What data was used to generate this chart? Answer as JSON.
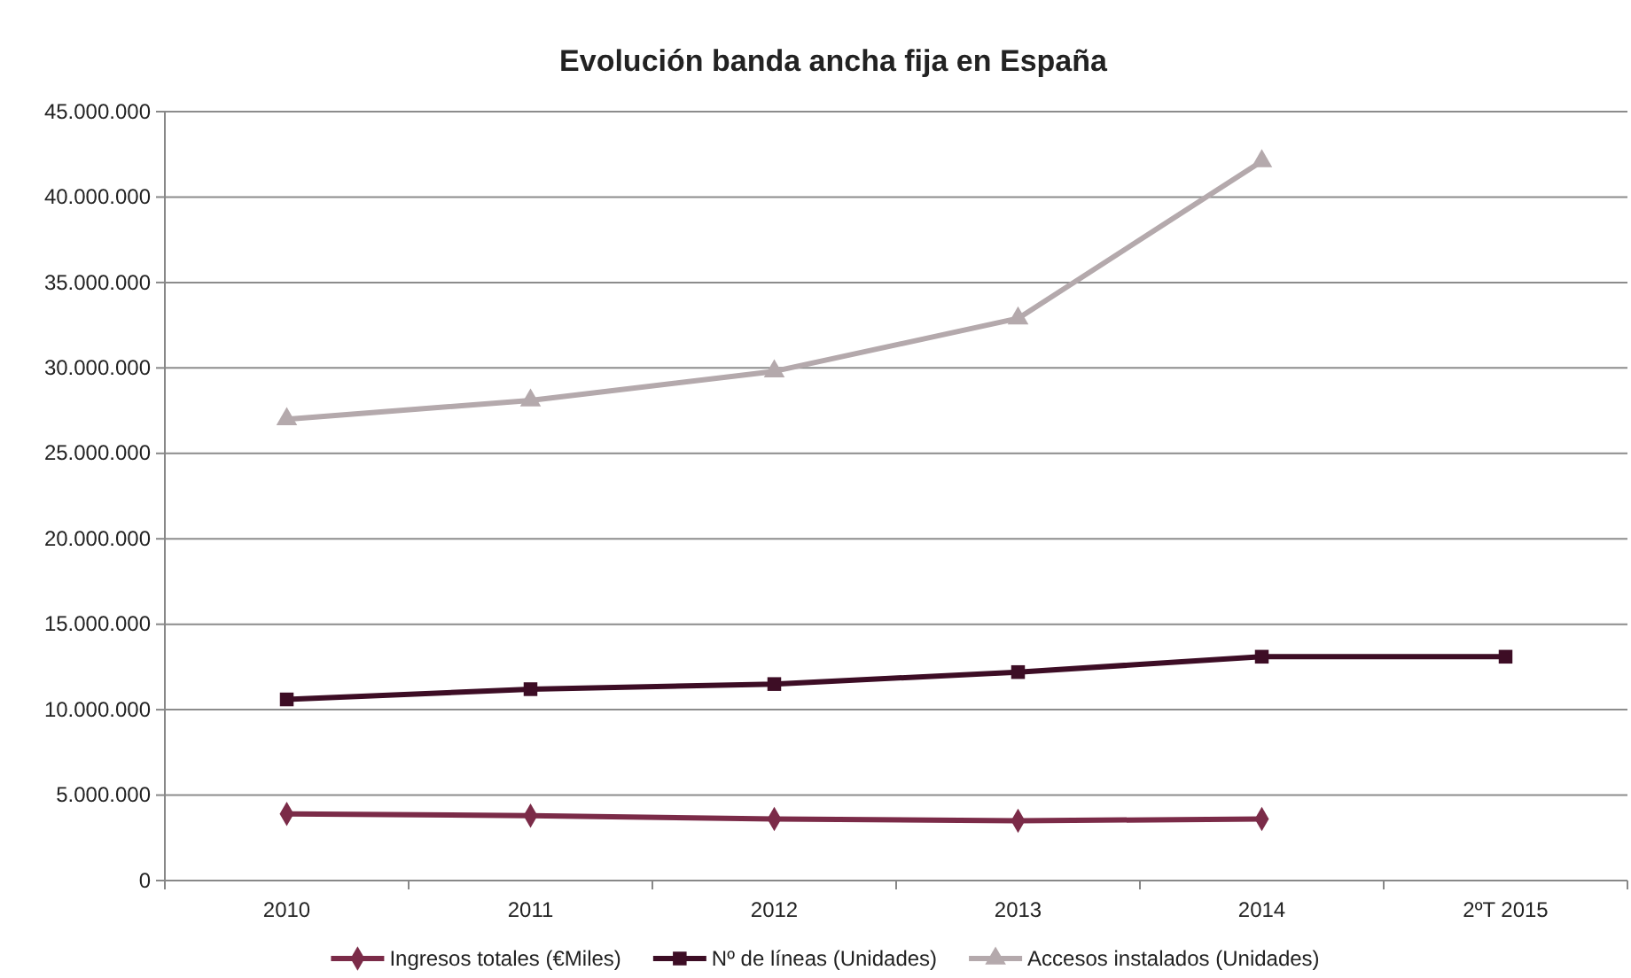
{
  "chart_data": {
    "type": "line",
    "title": "Evolución banda ancha fija en España",
    "categories": [
      "2010",
      "2011",
      "2012",
      "2013",
      "2014",
      "2ºT 2015"
    ],
    "series": [
      {
        "name": "Ingresos totales (€Miles)",
        "color": "#7b2b48",
        "marker": "diamond",
        "values": [
          3900000,
          3800000,
          3600000,
          3500000,
          3600000,
          null
        ]
      },
      {
        "name": "Nº de líneas (Unidades)",
        "color": "#3d0d25",
        "marker": "square",
        "values": [
          10600000,
          11200000,
          11500000,
          12200000,
          13100000,
          13100000
        ]
      },
      {
        "name": "Accesos instalados (Unidades)",
        "color": "#b4a9ac",
        "marker": "triangle",
        "values": [
          27000000,
          28100000,
          29800000,
          32900000,
          42100000,
          null
        ]
      }
    ],
    "ylim": [
      0,
      45000000
    ],
    "yticks": [
      0,
      {
        "value": 5000000,
        "label": "5.000.000"
      },
      {
        "value": 10000000,
        "label": "10.000.000"
      },
      {
        "value": 15000000,
        "label": "15.000.000"
      },
      {
        "value": 20000000,
        "label": "20.000.000"
      },
      {
        "value": 25000000,
        "label": "25.000.000"
      },
      {
        "value": 30000000,
        "label": "30.000.000"
      },
      {
        "value": 35000000,
        "label": "35.000.000"
      },
      {
        "value": 40000000,
        "label": "40.000.000"
      },
      {
        "value": 45000000,
        "label": "45.000.000"
      }
    ],
    "grid": "y",
    "legend": "bottom",
    "line_style": "solid"
  }
}
